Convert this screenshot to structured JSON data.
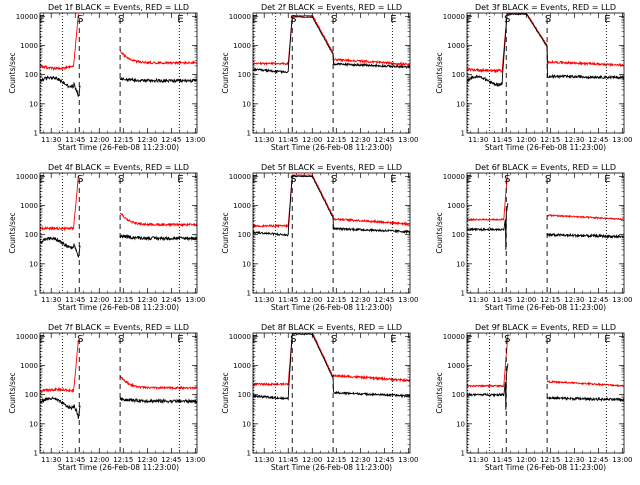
{
  "chart_data": [
    {
      "type": "line",
      "title": "Det 1f BLACK = Events, RED = LLD",
      "profile": "A",
      "black_base": 60,
      "red_base": 200,
      "black_post": 62,
      "red_post": 255,
      "black_pre_mid": 75,
      "red_pre_mid": 160
    },
    {
      "type": "line",
      "title": "Det 2f BLACK = Events, RED = LLD",
      "profile": "B",
      "black_base": 150,
      "red_base": 240,
      "black_post": 180,
      "red_post": 220,
      "flare_peak": 9500,
      "post_ref_black": 165,
      "post_ref_red": 225
    },
    {
      "type": "line",
      "title": "Det 3f BLACK = Events, RED = LLD",
      "profile": "C",
      "black_base": 65,
      "red_base": 150,
      "black_post": 80,
      "red_post": 210,
      "flare_peak": 12000
    },
    {
      "type": "line",
      "title": "Det 4f BLACK = Events, RED = LLD",
      "profile": "A",
      "black_base": 55,
      "red_base": 170,
      "black_post": 75,
      "red_post": 220,
      "black_pre_mid": 70,
      "red_pre_mid": 160
    },
    {
      "type": "line",
      "title": "Det 5f BLACK = Events, RED = LLD",
      "profile": "B",
      "black_base": 120,
      "red_base": 200,
      "black_post": 125,
      "red_post": 230,
      "flare_peak": 10000,
      "post_ref_black": 125,
      "post_ref_red": 230
    },
    {
      "type": "line",
      "title": "Det 6f BLACK = Events, RED = LLD",
      "profile": "D",
      "black_base": 150,
      "red_base": 330,
      "black_post": 90,
      "red_post": 330
    },
    {
      "type": "line",
      "title": "Det 7f BLACK = Events, RED = LLD",
      "profile": "A",
      "black_base": 55,
      "red_base": 130,
      "black_post": 60,
      "red_post": 170,
      "black_pre_mid": 65,
      "red_pre_mid": 150
    },
    {
      "type": "line",
      "title": "Det 8f BLACK = Events, RED = LLD",
      "profile": "B",
      "black_base": 90,
      "red_base": 230,
      "black_post": 90,
      "red_post": 300,
      "flare_peak": 12000,
      "post_ref_black": 120,
      "post_ref_red": 300
    },
    {
      "type": "line",
      "title": "Det 9f BLACK = Events, RED = LLD",
      "profile": "D",
      "black_base": 100,
      "red_base": 200,
      "black_post": 70,
      "red_post": 200
    }
  ],
  "shared": {
    "ylabel": "Counts/sec",
    "xlabel": "Start Time (26-Feb-08 11:23:00)",
    "x_ticks": [
      "11:30",
      "11:45",
      "12:00",
      "12:15",
      "12:30",
      "12:45",
      "13:00"
    ],
    "x_tick_minutes": [
      30,
      45,
      60,
      75,
      90,
      105,
      120
    ],
    "xlim_minutes": [
      23,
      121
    ],
    "y_ticks": [
      "1",
      "10",
      "100",
      "1000",
      "10000"
    ],
    "y_tick_values": [
      1,
      10,
      100,
      1000,
      10000
    ],
    "ylim": [
      1,
      13000
    ],
    "y_scale": "log",
    "markers": [
      {
        "label": "E",
        "minute": 23.5,
        "style": "dotted"
      },
      {
        "label": "S",
        "minute": 47.5,
        "style": "dashed"
      },
      {
        "label": "S",
        "minute": 73,
        "style": "dashed"
      },
      {
        "label": "E",
        "minute": 110,
        "style": "dotted"
      }
    ],
    "extra_dotted_minutes": [
      37
    ],
    "series_colors": {
      "events": "#000000",
      "lld": "#ff0000"
    }
  }
}
